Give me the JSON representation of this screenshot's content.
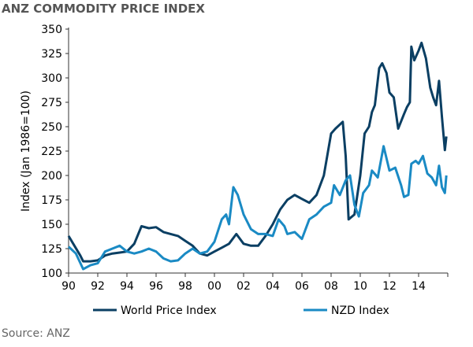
{
  "chart_data": {
    "type": "line",
    "title": "ANZ COMMODITY PRICE INDEX",
    "xlabel": "",
    "ylabel": "Index (Jan 1986=100)",
    "ylim": [
      100,
      350
    ],
    "xlim": [
      1990,
      2016
    ],
    "yticks": [
      "100",
      "125",
      "150",
      "175",
      "200",
      "225",
      "250",
      "275",
      "300",
      "325",
      "350"
    ],
    "xticks": [
      "90",
      "92",
      "94",
      "96",
      "98",
      "00",
      "02",
      "04",
      "06",
      "08",
      "10",
      "12",
      "14"
    ],
    "legend_position": "bottom",
    "grid": false,
    "source": "Source: ANZ",
    "series": [
      {
        "name": "World Price Index",
        "color": "#0b3f63",
        "x": [
          1990,
          1990.4,
          1990.8,
          1991,
          1991.5,
          1992,
          1992.5,
          1993,
          1993.5,
          1994,
          1994.5,
          1995,
          1995.5,
          1996,
          1996.5,
          1997,
          1997.5,
          1998,
          1998.5,
          1999,
          1999.5,
          2000,
          2000.5,
          2001,
          2001.5,
          2002,
          2002.5,
          2003,
          2003.5,
          2004,
          2004.5,
          2005,
          2005.5,
          2006,
          2006.5,
          2007,
          2007.5,
          2008,
          2008.3,
          2008.8,
          2009,
          2009.2,
          2009.6,
          2010,
          2010.3,
          2010.6,
          2010.8,
          2011,
          2011.3,
          2011.5,
          2011.8,
          2012,
          2012.3,
          2012.6,
          2013,
          2013.2,
          2013.4,
          2013.5,
          2013.7,
          2014,
          2014.2,
          2014.5,
          2014.8,
          2015,
          2015.2,
          2015.4,
          2015.6,
          2015.8,
          2015.9
        ],
        "y": [
          138,
          128,
          118,
          112,
          112,
          113,
          118,
          120,
          121,
          122,
          130,
          148,
          146,
          147,
          142,
          140,
          138,
          133,
          128,
          120,
          118,
          122,
          126,
          130,
          140,
          130,
          128,
          128,
          138,
          150,
          165,
          175,
          180,
          176,
          172,
          180,
          200,
          243,
          248,
          255,
          220,
          155,
          160,
          200,
          243,
          250,
          265,
          272,
          310,
          315,
          305,
          285,
          280,
          248,
          263,
          270,
          275,
          332,
          318,
          328,
          336,
          320,
          290,
          280,
          272,
          297,
          260,
          226,
          240
        ]
      },
      {
        "name": "NZD Index",
        "color": "#1a8ac4",
        "x": [
          1990,
          1990.5,
          1991,
          1991.5,
          1992,
          1992.5,
          1993,
          1993.5,
          1994,
          1994.5,
          1995,
          1995.5,
          1996,
          1996.5,
          1997,
          1997.5,
          1998,
          1998.5,
          1999,
          1999.5,
          2000,
          2000.5,
          2000.8,
          2001,
          2001.3,
          2001.6,
          2002,
          2002.5,
          2003,
          2003.5,
          2004,
          2004.4,
          2004.8,
          2005,
          2005.5,
          2006,
          2006.5,
          2007,
          2007.5,
          2008,
          2008.2,
          2008.6,
          2009,
          2009.3,
          2009.6,
          2009.9,
          2010.2,
          2010.6,
          2010.8,
          2011.2,
          2011.6,
          2012,
          2012.4,
          2012.8,
          2013,
          2013.3,
          2013.5,
          2013.8,
          2014,
          2014.3,
          2014.6,
          2014.9,
          2015.2,
          2015.4,
          2015.6,
          2015.8,
          2015.9
        ],
        "y": [
          127,
          120,
          104,
          108,
          110,
          122,
          125,
          128,
          122,
          120,
          122,
          125,
          122,
          115,
          112,
          113,
          120,
          125,
          120,
          122,
          132,
          155,
          160,
          150,
          188,
          180,
          160,
          145,
          140,
          140,
          138,
          155,
          148,
          140,
          142,
          135,
          155,
          160,
          168,
          172,
          190,
          180,
          195,
          200,
          170,
          158,
          182,
          190,
          205,
          198,
          230,
          205,
          208,
          190,
          178,
          180,
          212,
          215,
          212,
          220,
          202,
          198,
          190,
          210,
          188,
          182,
          200
        ]
      }
    ]
  }
}
